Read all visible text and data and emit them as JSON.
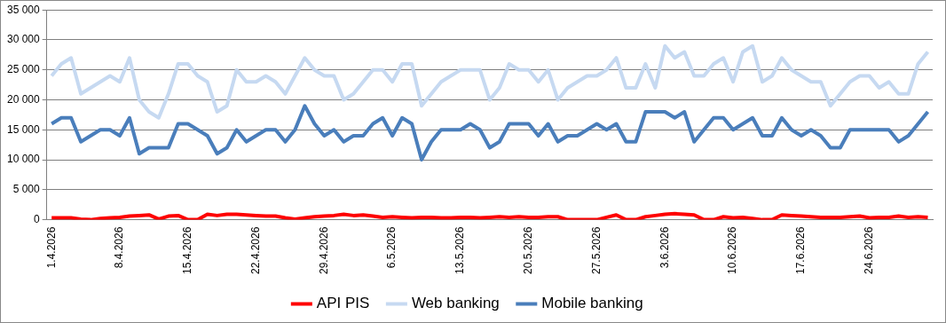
{
  "chart_data": {
    "type": "line",
    "categories": [
      "1.4.2026",
      null,
      null,
      null,
      null,
      null,
      null,
      "8.4.2026",
      null,
      null,
      null,
      null,
      null,
      null,
      "15.4.2026",
      null,
      null,
      null,
      null,
      null,
      null,
      "22.4.2026",
      null,
      null,
      null,
      null,
      null,
      null,
      "29.4.2026",
      null,
      null,
      null,
      null,
      null,
      null,
      "6.5.2026",
      null,
      null,
      null,
      null,
      null,
      null,
      "13.5.2026",
      null,
      null,
      null,
      null,
      null,
      null,
      "20.5.2026",
      null,
      null,
      null,
      null,
      null,
      null,
      "27.5.2026",
      null,
      null,
      null,
      null,
      null,
      null,
      "3.6.2026",
      null,
      null,
      null,
      null,
      null,
      null,
      "10.6.2026",
      null,
      null,
      null,
      null,
      null,
      null,
      "17.6.2026",
      null,
      null,
      null,
      null,
      null,
      null,
      "24.6.2026",
      null,
      null,
      null,
      null,
      null,
      null
    ],
    "series": [
      {
        "name": "API PIS",
        "color": "#ff0000",
        "values": [
          300,
          300,
          300,
          100,
          0,
          200,
          300,
          400,
          600,
          700,
          800,
          100,
          600,
          700,
          0,
          0,
          900,
          700,
          900,
          900,
          800,
          700,
          600,
          600,
          300,
          100,
          300,
          500,
          600,
          700,
          900,
          700,
          800,
          600,
          400,
          500,
          400,
          300,
          400,
          400,
          300,
          300,
          400,
          400,
          300,
          400,
          500,
          400,
          500,
          400,
          400,
          500,
          500,
          0,
          0,
          0,
          0,
          400,
          800,
          0,
          0,
          500,
          700,
          900,
          1000,
          900,
          800,
          0,
          0,
          500,
          300,
          400,
          200,
          0,
          0,
          800,
          700,
          600,
          500,
          400,
          400,
          400,
          500,
          600,
          300,
          400,
          400,
          600,
          400,
          500,
          400
        ]
      },
      {
        "name": "Web banking",
        "color": "#c6d9f1",
        "values": [
          24000,
          26000,
          27000,
          21000,
          22000,
          23000,
          24000,
          23000,
          27000,
          20000,
          18000,
          17000,
          21000,
          26000,
          26000,
          24000,
          23000,
          18000,
          19000,
          25000,
          23000,
          23000,
          24000,
          23000,
          21000,
          24000,
          27000,
          25000,
          24000,
          24000,
          20000,
          21000,
          23000,
          25000,
          25000,
          23000,
          26000,
          26000,
          19000,
          21000,
          23000,
          24000,
          25000,
          25000,
          25000,
          20000,
          22000,
          26000,
          25000,
          25000,
          23000,
          25000,
          20000,
          22000,
          23000,
          24000,
          24000,
          25000,
          27000,
          22000,
          22000,
          26000,
          22000,
          29000,
          27000,
          28000,
          24000,
          24000,
          26000,
          27000,
          23000,
          28000,
          29000,
          23000,
          24000,
          27000,
          25000,
          24000,
          23000,
          23000,
          19000,
          21000,
          23000,
          24000,
          24000,
          22000,
          23000,
          21000,
          21000,
          26000,
          28000
        ]
      },
      {
        "name": "Mobile banking",
        "color": "#4a7ebb",
        "values": [
          16000,
          17000,
          17000,
          13000,
          14000,
          15000,
          15000,
          14000,
          17000,
          11000,
          12000,
          12000,
          12000,
          16000,
          16000,
          15000,
          14000,
          11000,
          12000,
          15000,
          13000,
          14000,
          15000,
          15000,
          13000,
          15000,
          19000,
          16000,
          14000,
          15000,
          13000,
          14000,
          14000,
          16000,
          17000,
          14000,
          17000,
          16000,
          10000,
          13000,
          15000,
          15000,
          15000,
          16000,
          15000,
          12000,
          13000,
          16000,
          16000,
          16000,
          14000,
          16000,
          13000,
          14000,
          14000,
          15000,
          16000,
          15000,
          16000,
          13000,
          13000,
          18000,
          18000,
          18000,
          17000,
          18000,
          13000,
          15000,
          17000,
          17000,
          15000,
          16000,
          17000,
          14000,
          14000,
          17000,
          15000,
          14000,
          15000,
          14000,
          12000,
          12000,
          15000,
          15000,
          15000,
          15000,
          15000,
          13000,
          14000,
          16000,
          18000
        ]
      }
    ],
    "ylim": [
      0,
      35000
    ],
    "yticks": [
      {
        "value": 0,
        "label": "0"
      },
      {
        "value": 5000,
        "label": "5 000"
      },
      {
        "value": 10000,
        "label": "10 000"
      },
      {
        "value": 15000,
        "label": "15 000"
      },
      {
        "value": 20000,
        "label": "20 000"
      },
      {
        "value": 25000,
        "label": "25 000"
      },
      {
        "value": 30000,
        "label": "30 000"
      },
      {
        "value": 35000,
        "label": "35 000"
      }
    ],
    "grid": "y",
    "legend": "bottom",
    "marker": "none",
    "line_style": "solid"
  }
}
